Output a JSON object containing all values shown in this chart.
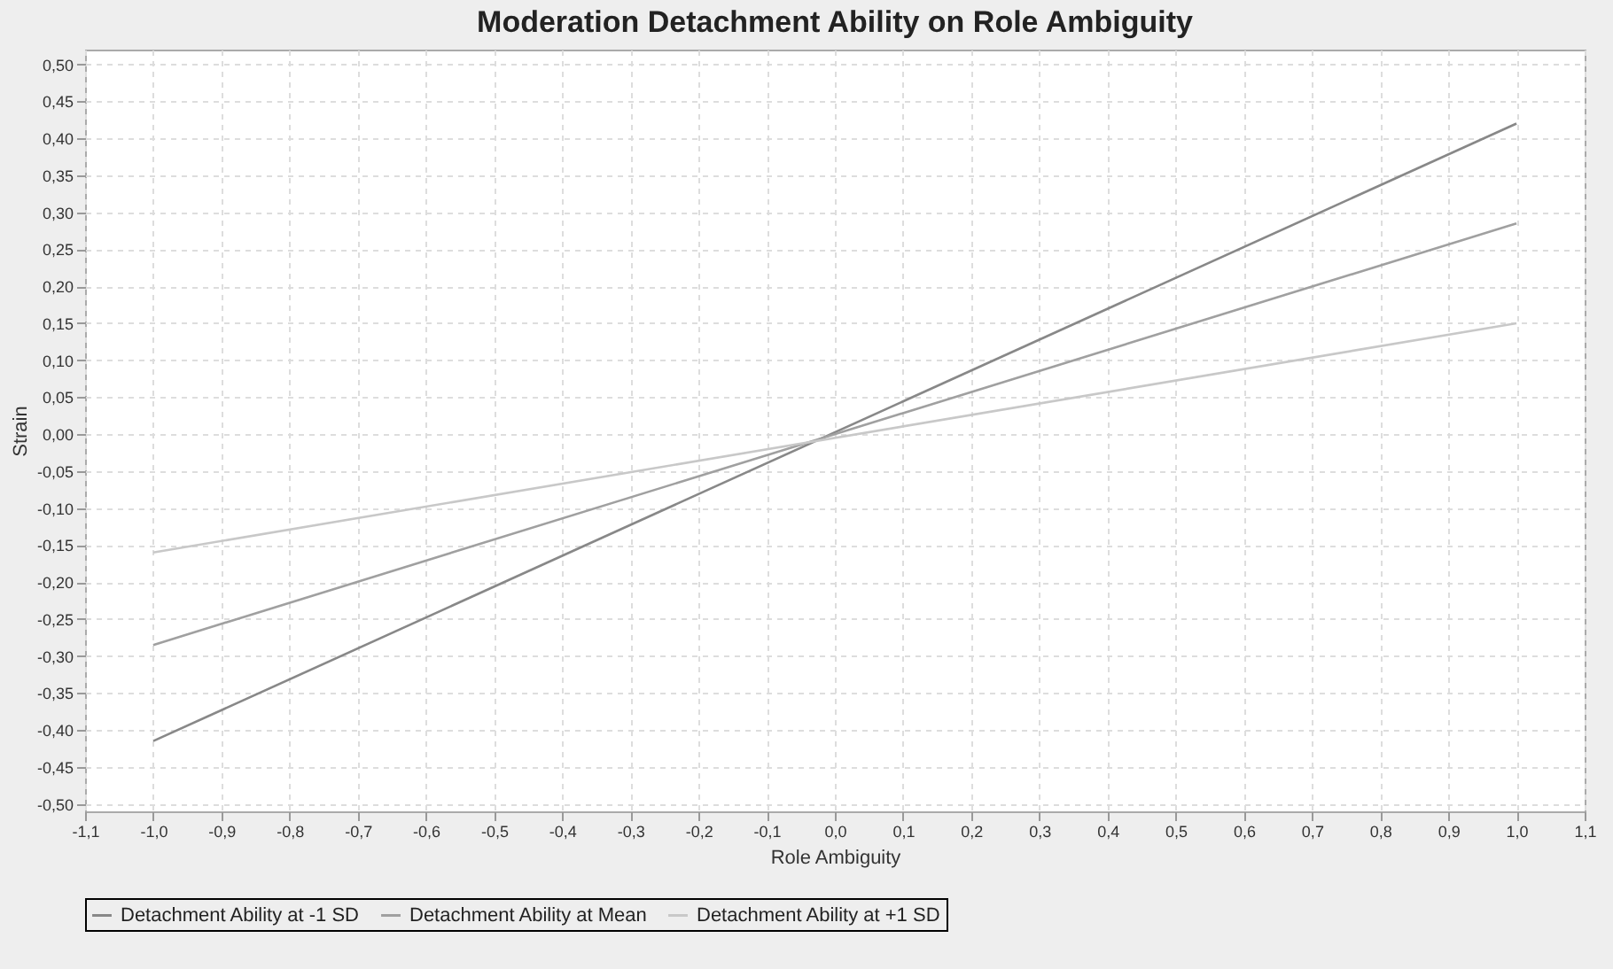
{
  "chart_data": {
    "type": "line",
    "title": "Moderation Detachment Ability on Role Ambiguity",
    "xlabel": "Role Ambiguity",
    "ylabel": "Strain",
    "x": [
      -1.0,
      1.0
    ],
    "series": [
      {
        "name": "Detachment Ability at -1 SD",
        "color": "#888888",
        "values": [
          -0.415,
          0.42
        ]
      },
      {
        "name": "Detachment Ability at Mean",
        "color": "#a0a0a0",
        "values": [
          -0.285,
          0.285
        ]
      },
      {
        "name": "Detachment Ability at +1 SD",
        "color": "#c8c8c8",
        "values": [
          -0.16,
          0.15
        ]
      }
    ],
    "xlim": [
      -1.1,
      1.1
    ],
    "xticks": [
      {
        "value": -1.1,
        "label": "-1,1"
      },
      {
        "value": -1.0,
        "label": "-1,0"
      },
      {
        "value": -0.9,
        "label": "-0,9"
      },
      {
        "value": -0.8,
        "label": "-0,8"
      },
      {
        "value": -0.7,
        "label": "-0,7"
      },
      {
        "value": -0.6,
        "label": "-0,6"
      },
      {
        "value": -0.5,
        "label": "-0,5"
      },
      {
        "value": -0.4,
        "label": "-0,4"
      },
      {
        "value": -0.3,
        "label": "-0,3"
      },
      {
        "value": -0.2,
        "label": "-0,2"
      },
      {
        "value": -0.1,
        "label": "-0,1"
      },
      {
        "value": 0.0,
        "label": "0,0"
      },
      {
        "value": 0.1,
        "label": "0,1"
      },
      {
        "value": 0.2,
        "label": "0,2"
      },
      {
        "value": 0.3,
        "label": "0,3"
      },
      {
        "value": 0.4,
        "label": "0,4"
      },
      {
        "value": 0.5,
        "label": "0,5"
      },
      {
        "value": 0.6,
        "label": "0,6"
      },
      {
        "value": 0.7,
        "label": "0,7"
      },
      {
        "value": 0.8,
        "label": "0,8"
      },
      {
        "value": 0.9,
        "label": "0,9"
      },
      {
        "value": 1.0,
        "label": "1,0"
      },
      {
        "value": 1.1,
        "label": "1,1"
      }
    ],
    "ylim": [
      -0.51,
      0.52
    ],
    "yticks": [
      {
        "value": -0.5,
        "label": "-0,50"
      },
      {
        "value": -0.45,
        "label": "-0,45"
      },
      {
        "value": -0.4,
        "label": "-0,40"
      },
      {
        "value": -0.35,
        "label": "-0,35"
      },
      {
        "value": -0.3,
        "label": "-0,30"
      },
      {
        "value": -0.25,
        "label": "-0,25"
      },
      {
        "value": -0.2,
        "label": "-0,20"
      },
      {
        "value": -0.15,
        "label": "-0,15"
      },
      {
        "value": -0.1,
        "label": "-0,10"
      },
      {
        "value": -0.05,
        "label": "-0,05"
      },
      {
        "value": 0.0,
        "label": "0,00"
      },
      {
        "value": 0.05,
        "label": "0,05"
      },
      {
        "value": 0.1,
        "label": "0,10"
      },
      {
        "value": 0.15,
        "label": "0,15"
      },
      {
        "value": 0.2,
        "label": "0,20"
      },
      {
        "value": 0.25,
        "label": "0,25"
      },
      {
        "value": 0.3,
        "label": "0,30"
      },
      {
        "value": 0.35,
        "label": "0,35"
      },
      {
        "value": 0.4,
        "label": "0,40"
      },
      {
        "value": 0.45,
        "label": "0,45"
      },
      {
        "value": 0.5,
        "label": "0,50"
      }
    ],
    "grid": true,
    "legend": "bottom",
    "marker": "none",
    "line_style": "solid"
  }
}
